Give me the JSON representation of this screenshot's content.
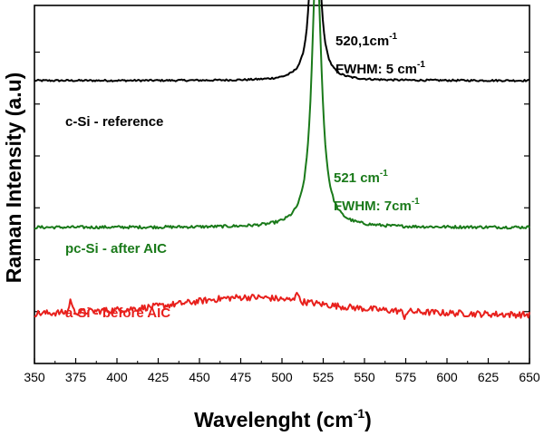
{
  "chart_data": {
    "type": "line",
    "xlabel_main": "Wavelenght (cm",
    "xlabel_sup": "-1",
    "xlabel_end": ")",
    "ylabel": "Raman Intensity (a.u)",
    "xlim": [
      350,
      650
    ],
    "xticks": [
      350,
      375,
      400,
      425,
      450,
      475,
      500,
      525,
      550,
      575,
      600,
      625,
      650
    ],
    "xtick_labels": [
      "350",
      "375",
      "400",
      "425",
      "450",
      "475",
      "500",
      "525",
      "550",
      "575",
      "600",
      "625",
      "650"
    ],
    "y_tick_labels": [],
    "series": [
      {
        "name": "c-Si - reference",
        "label": "c-Si - reference",
        "color": "#000000",
        "baseline": 0.79,
        "peak_center": 520.1,
        "peak_fwhm": 5,
        "peak_height": 0.755,
        "noise": 0.0025,
        "features": []
      },
      {
        "name": "pc-Si - after AIC",
        "label": "pc-Si - after AIC",
        "color": "#1a7a1a",
        "baseline": 0.38,
        "peak_center": 521,
        "peak_fwhm": 7,
        "peak_height": 0.765,
        "noise": 0.004,
        "features": []
      },
      {
        "name": "a-Si - before AIC",
        "label": "a-Si - before AIC",
        "color": "#e8201c",
        "baseline": 0.13,
        "peak_center": 480,
        "peak_fwhm": 120,
        "peak_height": 0.055,
        "noise": 0.009,
        "features": [
          [
            372,
            0.035
          ],
          [
            509,
            0.03
          ],
          [
            574,
            -0.015
          ]
        ]
      }
    ],
    "annotations": [
      {
        "line1_main": "520,1cm",
        "line1_sup": "-1",
        "line2_main": "FWHM: 5 cm",
        "line2_sup": "-1",
        "color": "#000000"
      },
      {
        "line1_main": "521 cm",
        "line1_sup": "-1",
        "line2_main": "FWHM: 7cm",
        "line2_sup": "-1",
        "color": "#1a7a1a"
      }
    ]
  }
}
